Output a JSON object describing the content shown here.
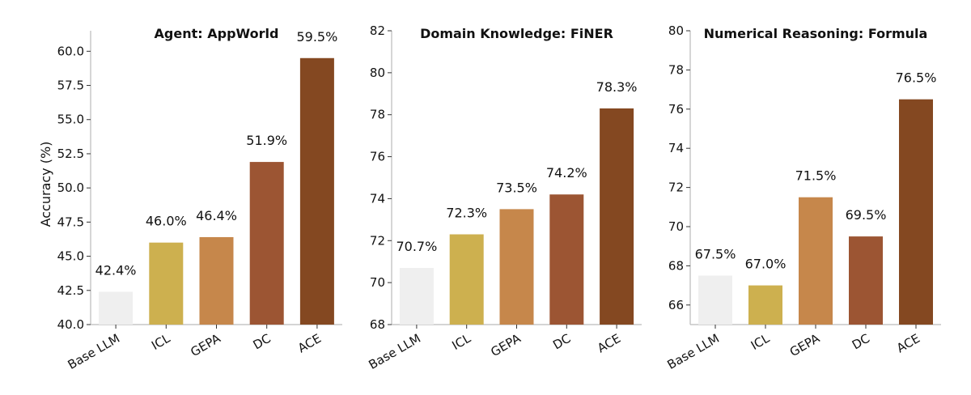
{
  "chart_data": [
    {
      "type": "bar",
      "title": "Agent: AppWorld",
      "ylabel": "Accuracy (%)",
      "categories": [
        "Base LLM",
        "ICL",
        "GEPA",
        "DC",
        "ACE"
      ],
      "values": [
        42.4,
        46.0,
        46.4,
        51.9,
        59.5
      ],
      "data_labels": [
        "42.4%",
        "46.0%",
        "46.4%",
        "51.9%",
        "59.5%"
      ],
      "ylim": [
        40,
        61.5
      ],
      "yticks": [
        40.0,
        42.5,
        45.0,
        47.5,
        50.0,
        52.5,
        55.0,
        57.5,
        60.0
      ],
      "ytick_labels": [
        "40.0",
        "42.5",
        "45.0",
        "47.5",
        "50.0",
        "52.5",
        "55.0",
        "57.5",
        "60.0"
      ],
      "grid": false
    },
    {
      "type": "bar",
      "title": "Domain Knowledge: FiNER",
      "ylabel": "",
      "categories": [
        "Base LLM",
        "ICL",
        "GEPA",
        "DC",
        "ACE"
      ],
      "values": [
        70.7,
        72.3,
        73.5,
        74.2,
        78.3
      ],
      "data_labels": [
        "70.7%",
        "72.3%",
        "73.5%",
        "74.2%",
        "78.3%"
      ],
      "ylim": [
        68,
        82
      ],
      "yticks": [
        68,
        70,
        72,
        74,
        76,
        78,
        80,
        82
      ],
      "ytick_labels": [
        "68",
        "70",
        "72",
        "74",
        "76",
        "78",
        "80",
        "82"
      ],
      "grid": false
    },
    {
      "type": "bar",
      "title": "Numerical Reasoning: Formula",
      "ylabel": "",
      "categories": [
        "Base LLM",
        "ICL",
        "GEPA",
        "DC",
        "ACE"
      ],
      "values": [
        67.5,
        67.0,
        71.5,
        69.5,
        76.5
      ],
      "data_labels": [
        "67.5%",
        "67.0%",
        "71.5%",
        "69.5%",
        "76.5%"
      ],
      "ylim": [
        65,
        80
      ],
      "yticks": [
        66,
        68,
        70,
        72,
        74,
        76,
        78,
        80
      ],
      "ytick_labels": [
        "66",
        "68",
        "70",
        "72",
        "74",
        "76",
        "78",
        "80"
      ],
      "grid": false
    }
  ],
  "colors": [
    "#efefef",
    "#cdb04f",
    "#c6874b",
    "#9c5533",
    "#844821"
  ]
}
